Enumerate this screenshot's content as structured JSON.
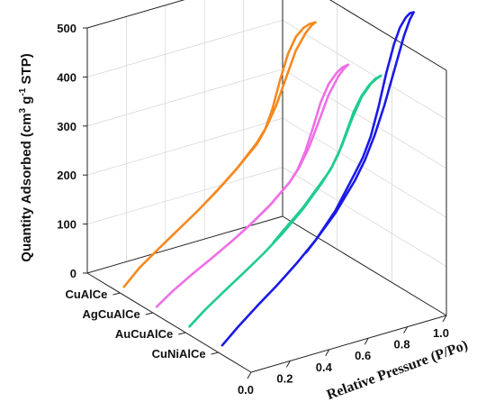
{
  "chart_data": {
    "type": "line",
    "subtype": "3d-isotherm-waterfall",
    "ylabel_parts": [
      "Quantity Adsorbed (cm",
      "3",
      " g",
      "-1",
      " STP)"
    ],
    "xlabel": "Relative Pressure (P/Po)",
    "zlabel": "",
    "ylim": [
      0,
      500
    ],
    "xlim": [
      0,
      1
    ],
    "yticks": [
      "0",
      "100",
      "200",
      "300",
      "400",
      "500"
    ],
    "xticks": [
      "0.0",
      "0.2",
      "0.4",
      "0.6",
      "0.8",
      "1.0"
    ],
    "categories": [
      "CuAlCe",
      "AgCuAlCe",
      "AuCuAlCe",
      "CuNiAlCe"
    ],
    "grid": true,
    "series": [
      {
        "name": "CuAlCe",
        "color": "#f5891f",
        "adsorption": {
          "x": [
            0.02,
            0.1,
            0.2,
            0.3,
            0.4,
            0.5,
            0.6,
            0.7,
            0.75,
            0.8,
            0.85,
            0.9,
            0.95,
            0.98,
            1.0
          ],
          "y": [
            10,
            40,
            68,
            95,
            122,
            152,
            185,
            225,
            252,
            290,
            340,
            390,
            420,
            432,
            436
          ]
        },
        "desorption": {
          "x": [
            1.0,
            0.97,
            0.94,
            0.9,
            0.86,
            0.82,
            0.78,
            0.74,
            0.7,
            0.6,
            0.5,
            0.45
          ],
          "y": [
            436,
            436,
            432,
            418,
            388,
            340,
            285,
            245,
            222,
            185,
            152,
            137
          ]
        }
      },
      {
        "name": "AgCuAlCe",
        "color": "#ee6fe6",
        "adsorption": {
          "x": [
            0.02,
            0.1,
            0.2,
            0.3,
            0.4,
            0.5,
            0.6,
            0.7,
            0.75,
            0.8,
            0.85,
            0.9,
            0.95,
            0.98,
            1.0
          ],
          "y": [
            10,
            32,
            55,
            76,
            98,
            122,
            150,
            185,
            210,
            245,
            292,
            340,
            372,
            385,
            390
          ]
        },
        "desorption": {
          "x": [
            1.0,
            0.97,
            0.94,
            0.9,
            0.86,
            0.82,
            0.78,
            0.74,
            0.7,
            0.6,
            0.5,
            0.45
          ],
          "y": [
            390,
            388,
            380,
            362,
            330,
            282,
            238,
            205,
            185,
            150,
            122,
            110
          ]
        }
      },
      {
        "name": "AuCuAlCe",
        "color": "#1fcc8f",
        "adsorption": {
          "x": [
            0.02,
            0.1,
            0.2,
            0.3,
            0.4,
            0.5,
            0.6,
            0.7,
            0.75,
            0.8,
            0.85,
            0.9,
            0.95,
            0.98,
            1.0
          ],
          "y": [
            10,
            35,
            62,
            88,
            115,
            146,
            182,
            225,
            252,
            288,
            335,
            375,
            398,
            405,
            408
          ]
        },
        "desorption": {
          "x": [
            1.0,
            0.97,
            0.94,
            0.9,
            0.86,
            0.82,
            0.78,
            0.74,
            0.7,
            0.6,
            0.5,
            0.45
          ],
          "y": [
            408,
            405,
            396,
            378,
            350,
            310,
            272,
            245,
            228,
            185,
            150,
            132
          ]
        }
      },
      {
        "name": "CuNiAlCe",
        "color": "#1a1ae6",
        "adsorption": {
          "x": [
            0.02,
            0.1,
            0.2,
            0.3,
            0.4,
            0.5,
            0.6,
            0.7,
            0.75,
            0.8,
            0.85,
            0.9,
            0.95,
            0.98,
            1.0
          ],
          "y": [
            12,
            40,
            72,
            102,
            135,
            172,
            215,
            270,
            305,
            350,
            405,
            470,
            535,
            565,
            578
          ]
        },
        "desorption": {
          "x": [
            1.0,
            0.98,
            0.96,
            0.93,
            0.9,
            0.86,
            0.82,
            0.78,
            0.74,
            0.7,
            0.6,
            0.5,
            0.45
          ],
          "y": [
            578,
            578,
            572,
            555,
            525,
            470,
            405,
            350,
            312,
            285,
            220,
            172,
            152
          ]
        }
      }
    ]
  }
}
